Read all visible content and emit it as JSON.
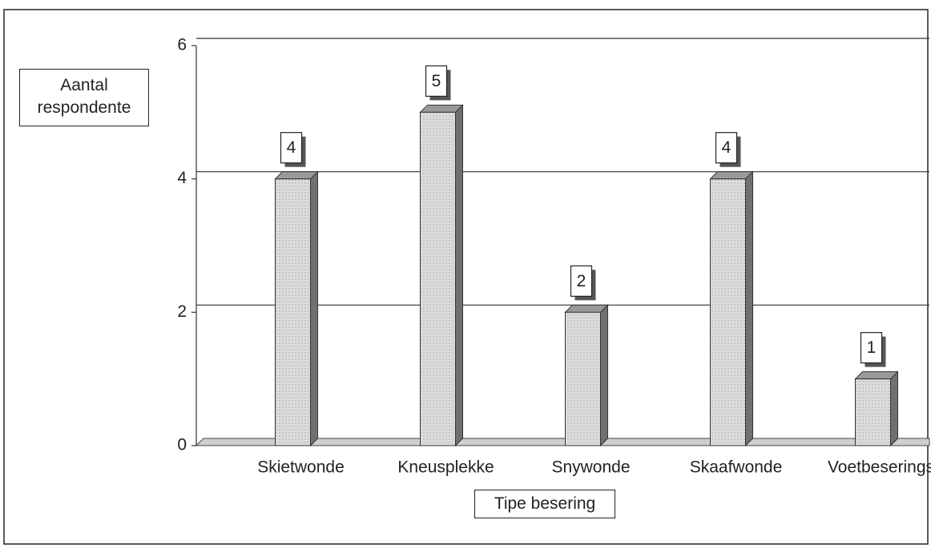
{
  "chart_data": {
    "type": "bar",
    "categories": [
      "Skietwonde",
      "Kneusplekke",
      "Snywonde",
      "Skaafwonde",
      "Voetbeserings"
    ],
    "values": [
      4,
      5,
      2,
      4,
      1
    ],
    "color": "#d4d4d4",
    "side_color": "#707070",
    "ylim": [
      0,
      6
    ],
    "yticks": [
      0,
      2,
      4,
      6
    ],
    "grid": true,
    "y_label": "Aantal respondente",
    "x_label": "Tipe besering"
  }
}
